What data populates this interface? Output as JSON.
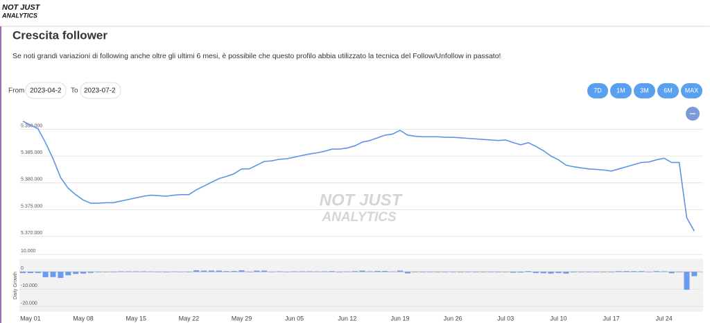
{
  "header": {
    "logo": [
      "NOT JUST",
      "ANALYTICS"
    ]
  },
  "title": "Crescita follower",
  "description": "Se noti grandi variazioni di following anche oltre gli ultimi 6 mesi, è possibile che questo profilo abbia utilizzato la tecnica del Follow/Unfollow in passato!",
  "filters": {
    "from_label": "From",
    "from_value": "2023-04-2",
    "to_label": "To",
    "to_value": "2023-07-2"
  },
  "range_buttons": [
    "7D",
    "1M",
    "3M",
    "6M",
    "MAX"
  ],
  "watermark": [
    "NOT JUST",
    "ANALYTICS"
  ],
  "chart_data": [
    {
      "type": "line",
      "color": "#5b93e6",
      "grid": true,
      "categories": [
        "Apr 30",
        "May 01",
        "May 02",
        "May 03",
        "May 04",
        "May 05",
        "May 06",
        "May 07",
        "May 08",
        "May 09",
        "May 10",
        "May 11",
        "May 12",
        "May 13",
        "May 14",
        "May 15",
        "May 16",
        "May 17",
        "May 18",
        "May 19",
        "May 20",
        "May 21",
        "May 22",
        "May 23",
        "May 24",
        "May 25",
        "May 26",
        "May 27",
        "May 28",
        "May 29",
        "May 30",
        "May 31",
        "Jun 01",
        "Jun 02",
        "Jun 03",
        "Jun 04",
        "Jun 05",
        "Jun 06",
        "Jun 07",
        "Jun 08",
        "Jun 09",
        "Jun 10",
        "Jun 11",
        "Jun 12",
        "Jun 13",
        "Jun 14",
        "Jun 15",
        "Jun 16",
        "Jun 17",
        "Jun 18",
        "Jun 19",
        "Jun 20",
        "Jun 21",
        "Jun 22",
        "Jun 23",
        "Jun 24",
        "Jun 25",
        "Jun 26",
        "Jun 27",
        "Jun 28",
        "Jun 29",
        "Jun 30",
        "Jul 01",
        "Jul 02",
        "Jul 03",
        "Jul 04",
        "Jul 05",
        "Jul 06",
        "Jul 07",
        "Jul 08",
        "Jul 09",
        "Jul 10",
        "Jul 11",
        "Jul 12",
        "Jul 13",
        "Jul 14",
        "Jul 15",
        "Jul 16",
        "Jul 17",
        "Jul 18",
        "Jul 19",
        "Jul 20",
        "Jul 21",
        "Jul 22",
        "Jul 23",
        "Jul 24",
        "Jul 25",
        "Jul 26",
        "Jul 27",
        "Jul 28"
      ],
      "values": [
        5391500,
        5390800,
        5390100,
        5387500,
        5384500,
        5381000,
        5379000,
        5377800,
        5376800,
        5376200,
        5376200,
        5376300,
        5376300,
        5376600,
        5376900,
        5377200,
        5377500,
        5377700,
        5377600,
        5377500,
        5377700,
        5377800,
        5377800,
        5378700,
        5379400,
        5380100,
        5380800,
        5381200,
        5381700,
        5382600,
        5382600,
        5383300,
        5384000,
        5384100,
        5384400,
        5384500,
        5384800,
        5385100,
        5385400,
        5385600,
        5385900,
        5386300,
        5386300,
        5386500,
        5386900,
        5387600,
        5387900,
        5388400,
        5388900,
        5389100,
        5389800,
        5388900,
        5388700,
        5388600,
        5388600,
        5388600,
        5388500,
        5388500,
        5388400,
        5388300,
        5388200,
        5388100,
        5388000,
        5387900,
        5388000,
        5387500,
        5387100,
        5387500,
        5386800,
        5386000,
        5385000,
        5384300,
        5383300,
        5383000,
        5382800,
        5382600,
        5382500,
        5382400,
        5382200,
        5382600,
        5383000,
        5383400,
        5383800,
        5383900,
        5384300,
        5384600,
        5383800,
        5383800,
        5373500,
        5371000
      ],
      "ylim": [
        5369500,
        5392000
      ],
      "yticks": [
        {
          "value": 5370000,
          "label": "5.370.000"
        },
        {
          "value": 5375000,
          "label": "5.375.000"
        },
        {
          "value": 5380000,
          "label": "5.380.000"
        },
        {
          "value": 5385000,
          "label": "5.385.000"
        },
        {
          "value": 5390000,
          "label": "5.390.000"
        }
      ]
    },
    {
      "type": "bar",
      "color": "#6b9bef",
      "ylabel": "Daily Growth",
      "grid": true,
      "categories": [
        "Apr 30",
        "May 01",
        "May 02",
        "May 03",
        "May 04",
        "May 05",
        "May 06",
        "May 07",
        "May 08",
        "May 09",
        "May 10",
        "May 11",
        "May 12",
        "May 13",
        "May 14",
        "May 15",
        "May 16",
        "May 17",
        "May 18",
        "May 19",
        "May 20",
        "May 21",
        "May 22",
        "May 23",
        "May 24",
        "May 25",
        "May 26",
        "May 27",
        "May 28",
        "May 29",
        "May 30",
        "May 31",
        "Jun 01",
        "Jun 02",
        "Jun 03",
        "Jun 04",
        "Jun 05",
        "Jun 06",
        "Jun 07",
        "Jun 08",
        "Jun 09",
        "Jun 10",
        "Jun 11",
        "Jun 12",
        "Jun 13",
        "Jun 14",
        "Jun 15",
        "Jun 16",
        "Jun 17",
        "Jun 18",
        "Jun 19",
        "Jun 20",
        "Jun 21",
        "Jun 22",
        "Jun 23",
        "Jun 24",
        "Jun 25",
        "Jun 26",
        "Jun 27",
        "Jun 28",
        "Jun 29",
        "Jun 30",
        "Jul 01",
        "Jul 02",
        "Jul 03",
        "Jul 04",
        "Jul 05",
        "Jul 06",
        "Jul 07",
        "Jul 08",
        "Jul 09",
        "Jul 10",
        "Jul 11",
        "Jul 12",
        "Jul 13",
        "Jul 14",
        "Jul 15",
        "Jul 16",
        "Jul 17",
        "Jul 18",
        "Jul 19",
        "Jul 20",
        "Jul 21",
        "Jul 22",
        "Jul 23",
        "Jul 24",
        "Jul 25",
        "Jul 26",
        "Jul 27",
        "Jul 28"
      ],
      "values": [
        -700,
        -700,
        -700,
        -3100,
        -3000,
        -3500,
        -2000,
        -1200,
        -1000,
        -600,
        0,
        100,
        0,
        300,
        300,
        300,
        300,
        200,
        -100,
        -100,
        200,
        100,
        0,
        900,
        700,
        700,
        700,
        400,
        500,
        900,
        0,
        700,
        700,
        100,
        300,
        100,
        300,
        300,
        300,
        200,
        300,
        400,
        0,
        200,
        400,
        700,
        300,
        500,
        500,
        200,
        700,
        -900,
        -200,
        -100,
        0,
        0,
        -100,
        0,
        -100,
        -100,
        -100,
        -100,
        -100,
        -100,
        100,
        -500,
        -400,
        400,
        -700,
        -800,
        -1000,
        -700,
        -1000,
        -300,
        -200,
        -200,
        -100,
        -100,
        -200,
        400,
        400,
        400,
        400,
        100,
        400,
        300,
        -800,
        0,
        -10300,
        -2500
      ],
      "ylim": [
        -23000,
        12000
      ],
      "yticks": [
        {
          "value": -20000,
          "label": "-20.000"
        },
        {
          "value": -10000,
          "label": "-10.000"
        },
        0,
        {
          "value": 10000,
          "label": "10.000"
        }
      ],
      "xticks": [
        "May 01",
        "May 08",
        "May 15",
        "May 22",
        "May 29",
        "Jun 05",
        "Jun 12",
        "Jun 19",
        "Jun 26",
        "Jul 03",
        "Jul 10",
        "Jul 17",
        "Jul 24"
      ]
    }
  ]
}
